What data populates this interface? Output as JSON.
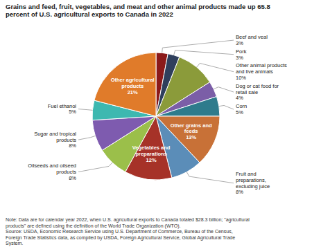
{
  "chart_data": {
    "type": "pie",
    "title": "Grains and feed, fruit, vegetables, and meat and other animal products made up 65.8\npercent of U.S. agricultural exports to Canada in 2022",
    "categories": [
      "Beef and veal",
      "Pork",
      "Other animal products\nand live animals",
      "Dog or cat food for\nretail sale",
      "Corn",
      "Other grains and\nfeeds",
      "Fruit and\npreparations,\nexcluding juice",
      "Vegetables and\npreparations",
      "Oilseeds and oilseed\nproducts",
      "Sugar and tropical\nproducts",
      "Fuel ethanol",
      "Other agricultural\nproducts"
    ],
    "values": [
      3,
      3,
      10,
      4,
      5,
      13,
      8,
      12,
      8,
      8,
      5,
      21
    ],
    "value_labels": [
      "3%",
      "3%",
      "10%",
      "4%",
      "5%",
      "13%",
      "8%",
      "12%",
      "8%",
      "8%",
      "5%",
      "21%"
    ],
    "data_labels": true,
    "colors": [
      "#8B1A1A",
      "#2F3F5C",
      "#8B9B3A",
      "#7B5EA7",
      "#2E7B8C",
      "#C87137",
      "#5B8DB8",
      "#A63228",
      "#9BBF4A",
      "#7E5BAF",
      "#3DB8B0",
      "#E07B2A"
    ],
    "annotations": [
      "Note: Data are for calendar year 2022, when U.S. agricultural exports to Canada totaled $28.3 billion; \"agricultural\nproducts\" are defined using the definition of the World Trade Organization (WTO).\nSource: USDA, Economic Research Service using U.S. Department of Commerce, Bureau of the Census,\nForeign Trade Statistics data, as compiled by USDA, Foreign Agricultural Service, Global Agricultural Trade\nSystem."
    ]
  }
}
